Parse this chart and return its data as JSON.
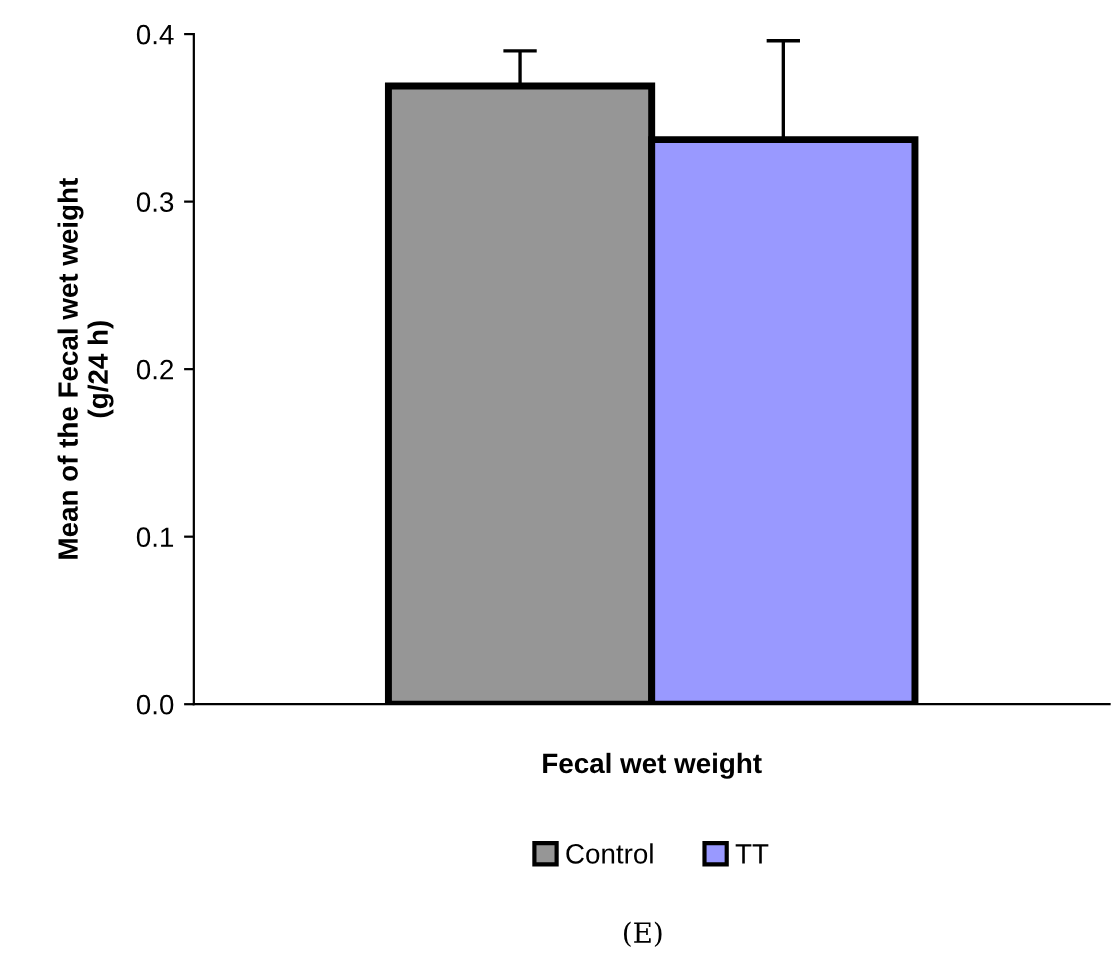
{
  "chart_data": {
    "type": "bar",
    "xlabel": "Fecal wet weight",
    "ylabel": "Mean of the Fecal wet weight\n(g/24 h)",
    "categories": [
      null
    ],
    "series": [
      {
        "name": "Control",
        "color": "#969696",
        "values": [
          0.369
        ],
        "errors": [
          [
            0.369,
            0.39
          ]
        ]
      },
      {
        "name": "TT",
        "color": "#9999ff",
        "values": [
          0.337
        ],
        "errors": [
          [
            0.337,
            0.396
          ]
        ]
      }
    ],
    "ylim": [
      0,
      0.4
    ],
    "yticks": [
      {
        "value": 0,
        "label": "0.0"
      },
      {
        "value": 0.1,
        "label": "0.1"
      },
      {
        "value": 0.2,
        "label": "0.2"
      },
      {
        "value": 0.3,
        "label": "0.3"
      },
      {
        "value": 0.4,
        "label": "0.4"
      }
    ],
    "grid": false,
    "legend": "bottom",
    "annotations": [
      "(E)"
    ]
  }
}
